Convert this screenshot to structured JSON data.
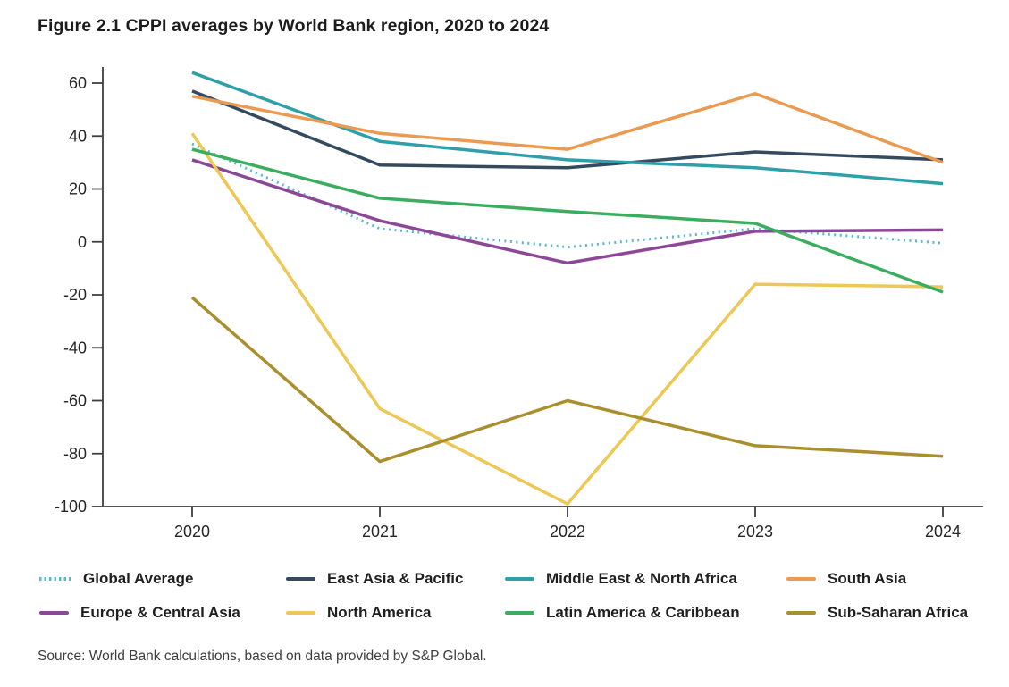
{
  "title": "Figure 2.1 CPPI averages by World Bank region, 2020 to 2024",
  "source": "Source: World Bank calculations, based on data provided by S&P Global.",
  "colors": {
    "axis": "#3f3f3f",
    "tick_text": "#262626",
    "title_text": "#1c1c1c"
  },
  "chart_data": {
    "type": "line",
    "categories": [
      "2020",
      "2021",
      "2022",
      "2023",
      "2024"
    ],
    "series": [
      {
        "name": "Global Average",
        "values": [
          37,
          5,
          -2,
          5,
          -0.5
        ],
        "color": "#5bb7d5",
        "style": "dotted"
      },
      {
        "name": "East Asia & Pacific",
        "values": [
          57,
          29,
          28,
          34,
          31
        ],
        "color": "#344a5f",
        "style": "solid"
      },
      {
        "name": "Middle East & North Africa",
        "values": [
          64,
          38,
          31,
          28,
          22
        ],
        "color": "#2f9fa9",
        "style": "solid"
      },
      {
        "name": "South Asia",
        "values": [
          55,
          41,
          35,
          56,
          30
        ],
        "color": "#eb9a52",
        "style": "solid"
      },
      {
        "name": "Europe & Central Asia",
        "values": [
          31,
          8,
          -8,
          4,
          4.5
        ],
        "color": "#8c4799",
        "style": "solid"
      },
      {
        "name": "North America",
        "values": [
          41,
          -63,
          -99,
          -16,
          -17
        ],
        "color": "#edc855",
        "style": "solid"
      },
      {
        "name": "Latin America & Caribbean",
        "values": [
          35,
          16.5,
          11.5,
          7,
          -19
        ],
        "color": "#3bad5e",
        "style": "solid"
      },
      {
        "name": "Sub-Saharan Africa",
        "values": [
          -21,
          -83,
          -60,
          -77,
          -81
        ],
        "color": "#aa8f2e",
        "style": "solid"
      }
    ],
    "ylim": [
      -100,
      60
    ],
    "ytick_step": 20,
    "grid": false,
    "legend_position": "bottom",
    "legend_rows": 2,
    "legend_columns": 4
  }
}
